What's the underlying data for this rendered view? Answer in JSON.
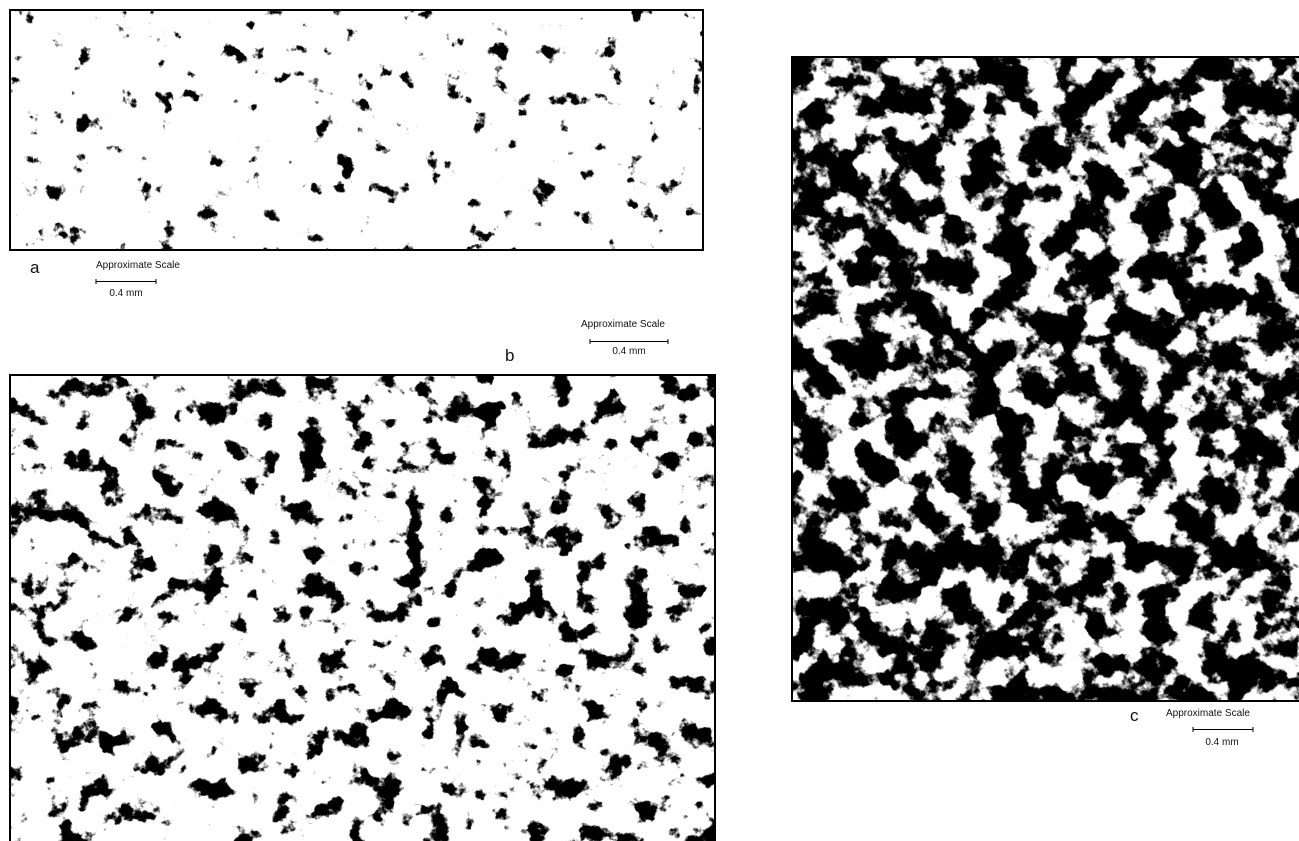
{
  "panels": [
    {
      "label": "a",
      "scale_title": "Approximate Scale",
      "scale_length": "0.4 mm"
    },
    {
      "label": "b",
      "scale_title": "Approximate Scale",
      "scale_length": "0.4 mm"
    },
    {
      "label": "c",
      "scale_title": "Approximate Scale",
      "scale_length": "0.4 mm"
    }
  ]
}
